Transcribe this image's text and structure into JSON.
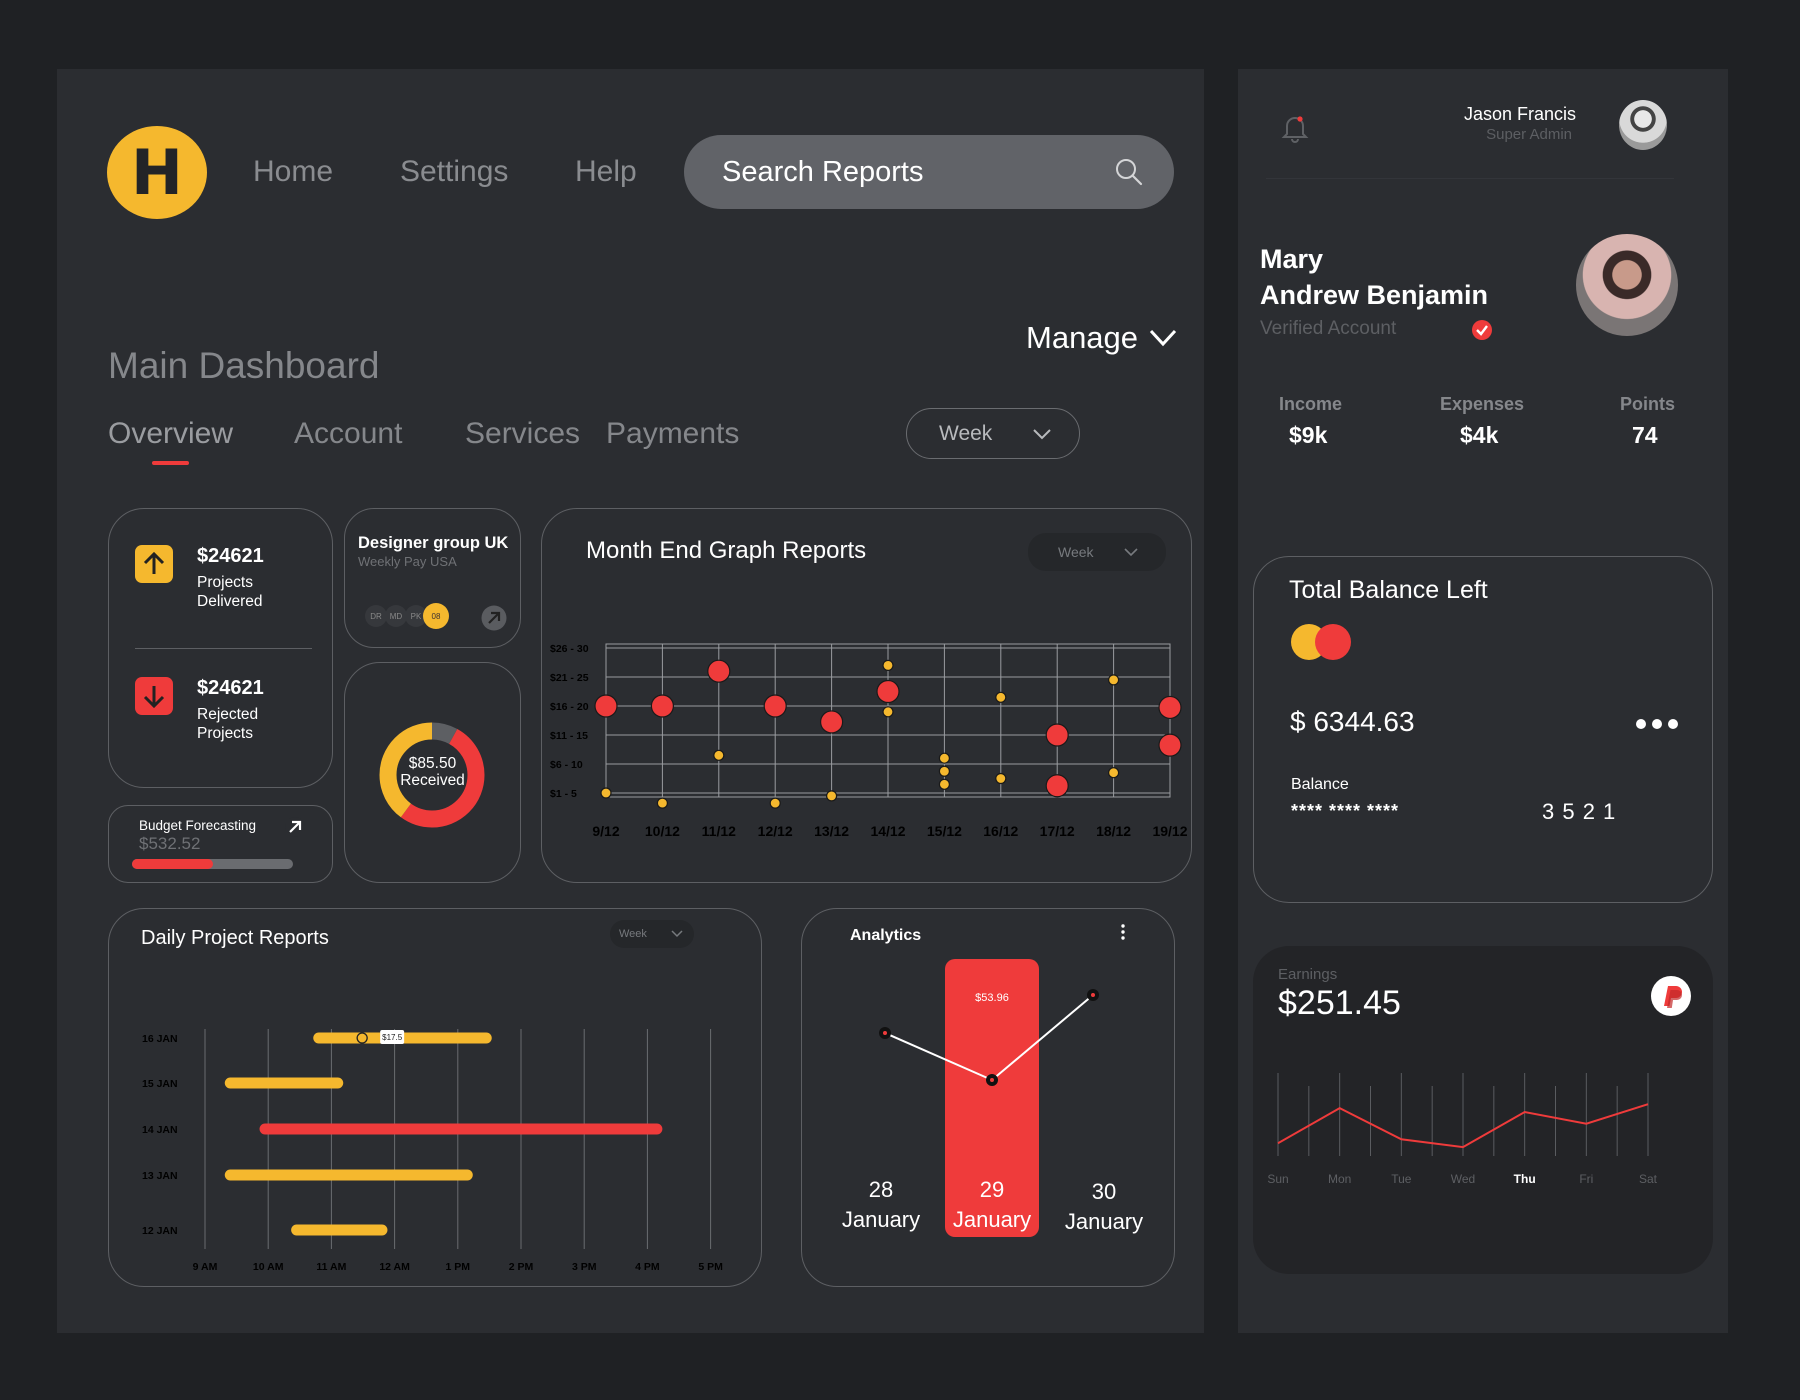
{
  "nav": {
    "home": "Home",
    "settings": "Settings",
    "help": "Help"
  },
  "search": {
    "placeholder": "Search Reports"
  },
  "page": {
    "title": "Main Dashboard",
    "manage": "Manage"
  },
  "tabs": [
    "Overview",
    "Account",
    "Services",
    "Payments"
  ],
  "period": "Week",
  "stats": {
    "delivered": {
      "value": "$24621",
      "label1": "Projects",
      "label2": "Delivered"
    },
    "rejected": {
      "value": "$24621",
      "label1": "Rejected",
      "label2": "Projects"
    }
  },
  "budget": {
    "label": "Budget Forecasting",
    "value": "$532.52",
    "progress": 0.5
  },
  "group": {
    "title": "Designer group UK",
    "subtitle": "Weekly Pay USA",
    "members": [
      "DR",
      "MD",
      "PK"
    ],
    "count": "08"
  },
  "donut": {
    "value": "$85.50",
    "label": "Received",
    "yellow": 0.4,
    "red": 0.52,
    "gray": 0.08
  },
  "month_chart": {
    "title": "Month End Graph Reports",
    "period": "Week",
    "chart_data": {
      "type": "scatter",
      "x": [
        "9/12",
        "10/12",
        "11/12",
        "12/12",
        "13/12",
        "14/12",
        "15/12",
        "16/12",
        "17/12",
        "18/12",
        "19/12"
      ],
      "y_categories": [
        "$1 - 5",
        "$6 - 10",
        "$11 - 15",
        "$16 - 20",
        "$21 - 25",
        "$26 - 30"
      ],
      "series": [
        {
          "color": "#ef3b3b",
          "points": [
            [
              0,
              3
            ],
            [
              1,
              3
            ],
            [
              2,
              4.2
            ],
            [
              3,
              3
            ],
            [
              4,
              2.45
            ],
            [
              5,
              3.5
            ],
            [
              8,
              2
            ],
            [
              8,
              0.25
            ],
            [
              10,
              2.95
            ],
            [
              10,
              1.65
            ]
          ]
        },
        {
          "color": "#f5b82e",
          "points": [
            [
              0,
              0
            ],
            [
              1,
              -0.35
            ],
            [
              2,
              1.3
            ],
            [
              3,
              -0.35
            ],
            [
              4,
              -0.1
            ],
            [
              5,
              4.4
            ],
            [
              5,
              2.8
            ],
            [
              6,
              1.2
            ],
            [
              6,
              0.75
            ],
            [
              6,
              0.3
            ],
            [
              7,
              3.3
            ],
            [
              7,
              0.5
            ],
            [
              9,
              3.9
            ],
            [
              9,
              0.7
            ]
          ]
        }
      ]
    }
  },
  "daily": {
    "title": "Daily Project Reports",
    "period": "Week",
    "marker": "$17.5",
    "chart_data": {
      "type": "bar",
      "orientation": "horizontal",
      "categories": [
        "16 JAN",
        "15 JAN",
        "14 JAN",
        "13 JAN",
        "12 JAN"
      ],
      "x_ticks": [
        "9 AM",
        "10 AM",
        "11 AM",
        "12 AM",
        "1 PM",
        "2 PM",
        "3 PM",
        "4 PM",
        "5 PM"
      ],
      "bars": [
        {
          "category": "16 JAN",
          "start": 10.8,
          "end": 13.45,
          "color": "#f5b82e"
        },
        {
          "category": "15 JAN",
          "start": 9.4,
          "end": 11.1,
          "color": "#f5b82e"
        },
        {
          "category": "14 JAN",
          "start": 9.95,
          "end": 16.15,
          "color": "#ef3b3b"
        },
        {
          "category": "13 JAN",
          "start": 9.4,
          "end": 13.15,
          "color": "#f5b82e"
        },
        {
          "category": "12 JAN",
          "start": 10.45,
          "end": 11.8,
          "color": "#f5b82e"
        }
      ]
    }
  },
  "analytics": {
    "title": "Analytics",
    "highlight_value": "$53.96",
    "days": [
      {
        "num": "28",
        "month": "January"
      },
      {
        "num": "29",
        "month": "January"
      },
      {
        "num": "30",
        "month": "January"
      }
    ],
    "chart_data": {
      "type": "line",
      "x": [
        "28 January",
        "29 January",
        "30 January"
      ],
      "values": [
        0.82,
        0.5,
        1.0
      ],
      "ylim": [
        0,
        1
      ]
    }
  },
  "user": {
    "name": "Jason Francis",
    "role": "Super Admin"
  },
  "profile": {
    "first": "Mary",
    "last": "Andrew Benjamin",
    "status": "Verified Account"
  },
  "summary": [
    {
      "label": "Income",
      "value": "$9k"
    },
    {
      "label": "Expenses",
      "value": "$4k"
    },
    {
      "label": "Points",
      "value": "74"
    }
  ],
  "balance": {
    "title": "Total Balance Left",
    "amount": "$ 6344.63",
    "label": "Balance",
    "masked": "**** **** ****",
    "last4": "3 5 2 1"
  },
  "earnings": {
    "label": "Earnings",
    "amount": "$251.45",
    "chart_data": {
      "type": "line",
      "x": [
        "Sun",
        "Mon",
        "Tue",
        "Wed",
        "Thu",
        "Fri",
        "Sat"
      ],
      "values": [
        0.1,
        0.55,
        0.15,
        0.05,
        0.5,
        0.35,
        0.6
      ],
      "ylim": [
        0,
        1
      ],
      "highlight": "Thu"
    }
  },
  "colors": {
    "accent_yellow": "#f5b82e",
    "accent_red": "#ef3b3b",
    "panel": "#2b2d31",
    "background": "#1f2124"
  }
}
